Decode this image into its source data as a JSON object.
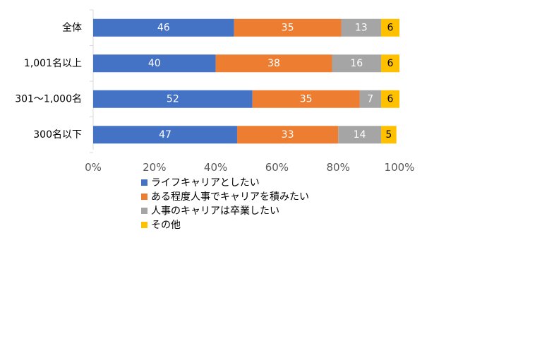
{
  "chart_data": {
    "type": "bar",
    "orientation": "horizontal",
    "stacked": "percent",
    "categories": [
      "全体",
      "1,001名以上",
      "301～1,000名",
      "300名以下"
    ],
    "series": [
      {
        "name": "ライフキャリアとしたい",
        "color": "#4472C4",
        "values": [
          46,
          40,
          52,
          47
        ]
      },
      {
        "name": "ある程度人事でキャリアを積みたい",
        "color": "#ED7D31",
        "values": [
          35,
          38,
          35,
          33
        ]
      },
      {
        "name": "人事のキャリアは卒業したい",
        "color": "#A5A5A5",
        "values": [
          13,
          16,
          7,
          14
        ]
      },
      {
        "name": "その他",
        "color": "#FFC000",
        "values": [
          6,
          6,
          6,
          5
        ]
      }
    ],
    "xlim": [
      0,
      100
    ],
    "x_ticks": [
      "0%",
      "20%",
      "40%",
      "60%",
      "80%",
      "100%"
    ],
    "legend": "bottom",
    "grid": false,
    "data_labels": true
  }
}
